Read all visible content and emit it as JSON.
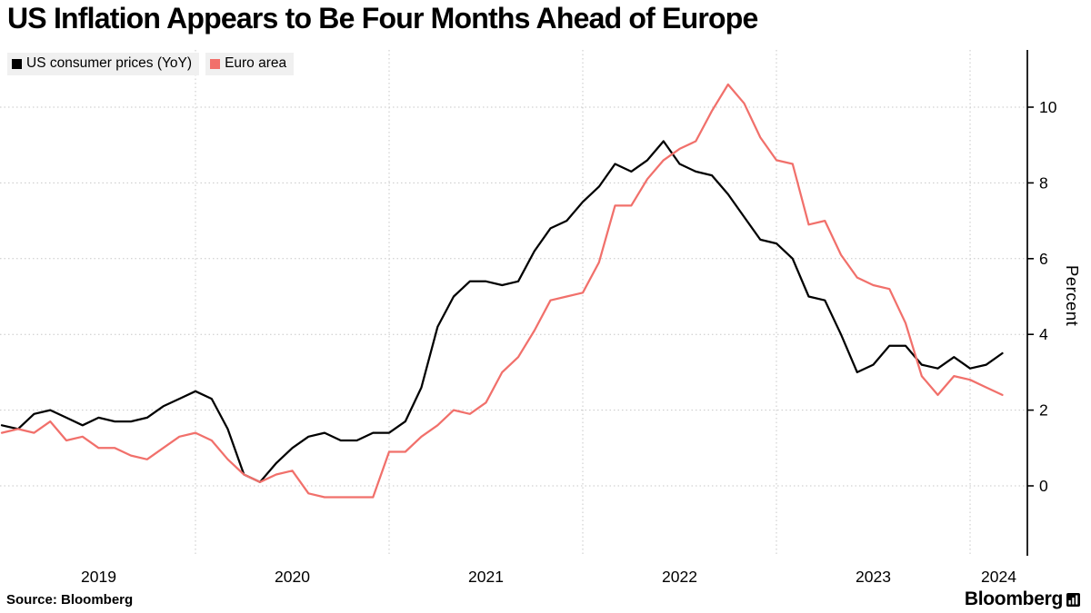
{
  "header": {
    "title": "US Inflation Appears to Be Four Months Ahead of Europe"
  },
  "legend": [
    {
      "label": "US consumer prices (YoY)",
      "color": "#000000"
    },
    {
      "label": "Euro area",
      "color": "#F1706B"
    }
  ],
  "footer": {
    "source": "Source:  Bloomberg",
    "logo": "Bloomberg"
  },
  "chart_data": {
    "type": "line",
    "title": "US Inflation Appears to Be Four Months Ahead of Europe",
    "xlabel": "",
    "ylabel": "Percent",
    "grid": "dotted",
    "legend_position": "top-left",
    "y_ticks": [
      0,
      2,
      4,
      6,
      8,
      10
    ],
    "ylim": [
      -1.9,
      11.5
    ],
    "x_tick_labels": [
      "2019",
      "2020",
      "2021",
      "2022",
      "2023",
      "2024"
    ],
    "x": [
      "2019-01",
      "2019-02",
      "2019-03",
      "2019-04",
      "2019-05",
      "2019-06",
      "2019-07",
      "2019-08",
      "2019-09",
      "2019-10",
      "2019-11",
      "2019-12",
      "2020-01",
      "2020-02",
      "2020-03",
      "2020-04",
      "2020-05",
      "2020-06",
      "2020-07",
      "2020-08",
      "2020-09",
      "2020-10",
      "2020-11",
      "2020-12",
      "2021-01",
      "2021-02",
      "2021-03",
      "2021-04",
      "2021-05",
      "2021-06",
      "2021-07",
      "2021-08",
      "2021-09",
      "2021-10",
      "2021-11",
      "2021-12",
      "2022-01",
      "2022-02",
      "2022-03",
      "2022-04",
      "2022-05",
      "2022-06",
      "2022-07",
      "2022-08",
      "2022-09",
      "2022-10",
      "2022-11",
      "2022-12",
      "2023-01",
      "2023-02",
      "2023-03",
      "2023-04",
      "2023-05",
      "2023-06",
      "2023-07",
      "2023-08",
      "2023-09",
      "2023-10",
      "2023-11",
      "2023-12",
      "2024-01",
      "2024-02",
      "2024-03"
    ],
    "series": [
      {
        "name": "US consumer prices (YoY)",
        "color": "#000000",
        "values": [
          1.6,
          1.5,
          1.9,
          2.0,
          1.8,
          1.6,
          1.8,
          1.7,
          1.7,
          1.8,
          2.1,
          2.3,
          2.5,
          2.3,
          1.5,
          0.3,
          0.1,
          0.6,
          1.0,
          1.3,
          1.4,
          1.2,
          1.2,
          1.4,
          1.4,
          1.7,
          2.6,
          4.2,
          5.0,
          5.4,
          5.4,
          5.3,
          5.4,
          6.2,
          6.8,
          7.0,
          7.5,
          7.9,
          8.5,
          8.3,
          8.6,
          9.1,
          8.5,
          8.3,
          8.2,
          7.7,
          7.1,
          6.5,
          6.4,
          6.0,
          5.0,
          4.9,
          4.0,
          3.0,
          3.2,
          3.7,
          3.7,
          3.2,
          3.1,
          3.4,
          3.1,
          3.2,
          3.5
        ]
      },
      {
        "name": "Euro area",
        "color": "#F1706B",
        "values": [
          1.4,
          1.5,
          1.4,
          1.7,
          1.2,
          1.3,
          1.0,
          1.0,
          0.8,
          0.7,
          1.0,
          1.3,
          1.4,
          1.2,
          0.7,
          0.3,
          0.1,
          0.3,
          0.4,
          -0.2,
          -0.3,
          -0.3,
          -0.3,
          -0.3,
          0.9,
          0.9,
          1.3,
          1.6,
          2.0,
          1.9,
          2.2,
          3.0,
          3.4,
          4.1,
          4.9,
          5.0,
          5.1,
          5.9,
          7.4,
          7.4,
          8.1,
          8.6,
          8.9,
          9.1,
          9.9,
          10.6,
          10.1,
          9.2,
          8.6,
          8.5,
          6.9,
          7.0,
          6.1,
          5.5,
          5.3,
          5.2,
          4.3,
          2.9,
          2.4,
          2.9,
          2.8,
          2.6,
          2.4
        ]
      }
    ]
  }
}
